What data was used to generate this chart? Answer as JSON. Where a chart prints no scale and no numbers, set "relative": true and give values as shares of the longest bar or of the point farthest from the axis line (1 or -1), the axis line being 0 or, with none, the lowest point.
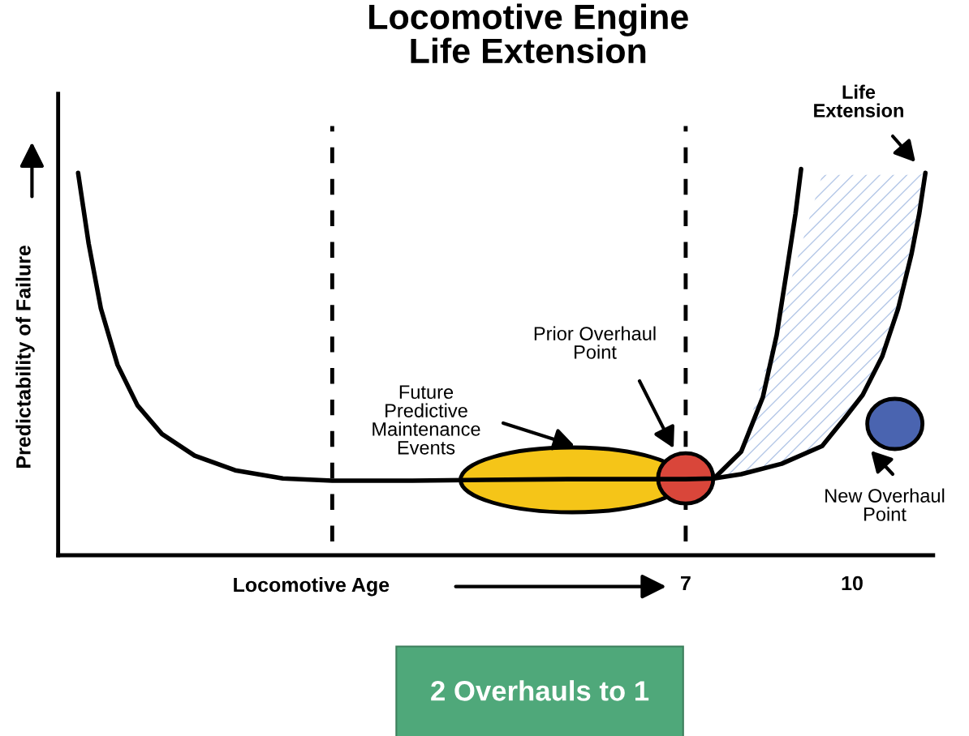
{
  "chart_data": {
    "type": "line",
    "title": "Locomotive Engine\nLife Extension",
    "xlabel": "Locomotive Age",
    "ylabel": "Predictability of Failure",
    "relative": true,
    "xlim": [
      -4.31,
      11.46
    ],
    "xticks": [
      7,
      10
    ],
    "grid": false,
    "legend": false,
    "line_style": "solid",
    "series": [
      {
        "color": "#000000",
        "x": [
          -3.95,
          -3.76,
          -3.54,
          -3.24,
          -2.88,
          -2.44,
          -1.85,
          -1.12,
          -0.26,
          0.63,
          1.95,
          3.41,
          4.88,
          6.34,
          7.0,
          7.51,
          8.0,
          8.39,
          8.64,
          8.83,
          8.98,
          9.08
        ],
        "values": [
          0.99,
          0.807,
          0.639,
          0.493,
          0.388,
          0.314,
          0.258,
          0.22,
          0.199,
          0.193,
          0.193,
          0.195,
          0.197,
          0.197,
          0.197,
          0.199,
          0.268,
          0.409,
          0.57,
          0.744,
          0.885,
          1.0
        ]
      },
      {
        "color": "#000000",
        "x": [
          7.51,
          8.0,
          8.73,
          9.46,
          9.85,
          10.19,
          10.54,
          10.83,
          11.07,
          11.21,
          11.32
        ],
        "values": [
          0.199,
          0.21,
          0.237,
          0.283,
          0.352,
          0.415,
          0.514,
          0.639,
          0.78,
          0.885,
          0.99
        ],
        "lower": [
          0.199,
          0.21,
          0.237,
          0.283,
          0.352,
          0.415,
          0.514,
          0.639,
          0.78,
          0.885,
          0.99
        ],
        "upper": [
          0.199,
          0.268,
          0.63,
          0.985,
          0.985,
          0.985,
          0.985,
          0.985,
          0.985,
          0.985,
          0.99
        ]
      },
      {
        "type": "scatter",
        "x": [
          7.0,
          10.77
        ],
        "values": [
          0.199,
          0.34
        ],
        "colors": [
          "#d9463a",
          "#4a64b0"
        ],
        "marker": "circle"
      }
    ],
    "ref_lines": [
      {
        "axis": "x",
        "value": 0.63,
        "line_style": "dashed",
        "color": "#000000"
      },
      {
        "axis": "x",
        "value": 7,
        "line_style": "dashed",
        "color": "#000000"
      }
    ],
    "annotations": [
      "Life\nExtension",
      "Prior Overhaul\nPoint",
      "Future\nPredictive\nMaintenance\nEvents",
      "New Overhaul\nPoint",
      "2 Overhauls to 1"
    ]
  }
}
